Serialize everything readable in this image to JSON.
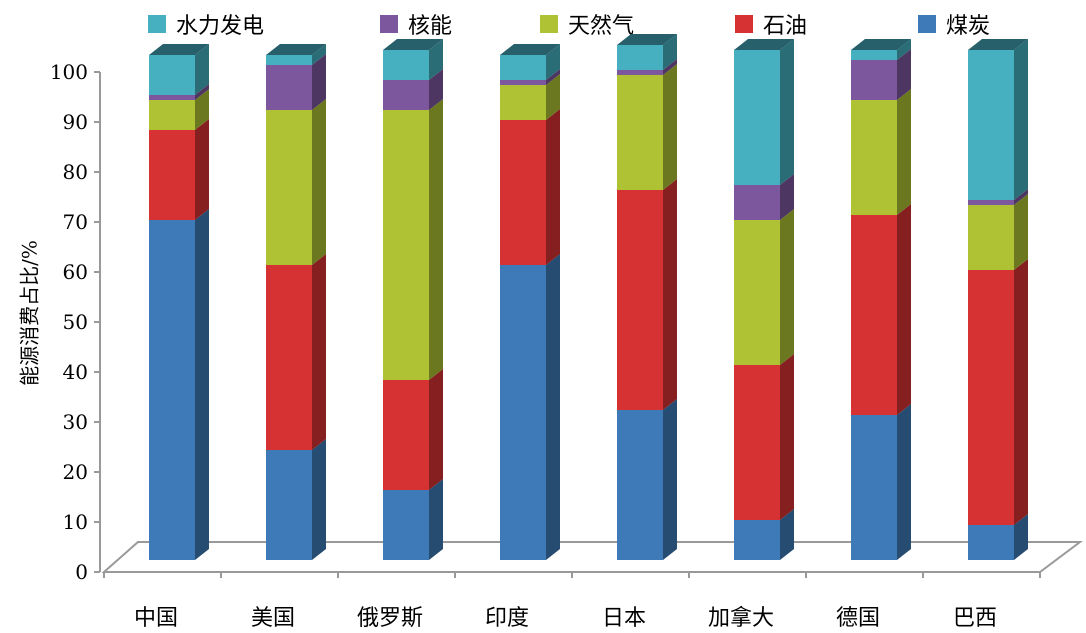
{
  "chart_data": {
    "type": "bar",
    "stacked": true,
    "three_d": true,
    "categories": [
      "中国",
      "美国",
      "俄罗斯",
      "印度",
      "日本",
      "加拿大",
      "德国",
      "巴西"
    ],
    "series": [
      {
        "name": "煤炭",
        "color": "#3D7AB7",
        "values": [
          68,
          22,
          14,
          59,
          30,
          8,
          29,
          7
        ]
      },
      {
        "name": "石油",
        "color": "#D63233",
        "values": [
          18,
          37,
          22,
          29,
          44,
          31,
          40,
          51
        ]
      },
      {
        "name": "天然气",
        "color": "#AEC233",
        "values": [
          6,
          31,
          54,
          7,
          23,
          29,
          23,
          13
        ]
      },
      {
        "name": "核能",
        "color": "#7D579E",
        "values": [
          1,
          9,
          6,
          1,
          1,
          7,
          8,
          1
        ]
      },
      {
        "name": "水力发电",
        "color": "#46AFC0",
        "values": [
          8,
          2,
          6,
          5,
          5,
          27,
          2,
          30
        ]
      }
    ],
    "legend_order": [
      "水力发电",
      "核能",
      "天然气",
      "石油",
      "煤炭"
    ],
    "ylabel": "能源消费占比/%",
    "xlabel": "",
    "ylim": [
      0,
      100
    ],
    "yticks": [
      0,
      10,
      20,
      30,
      40,
      50,
      60,
      70,
      80,
      90,
      100
    ],
    "grid": false,
    "legend_position": "top"
  }
}
